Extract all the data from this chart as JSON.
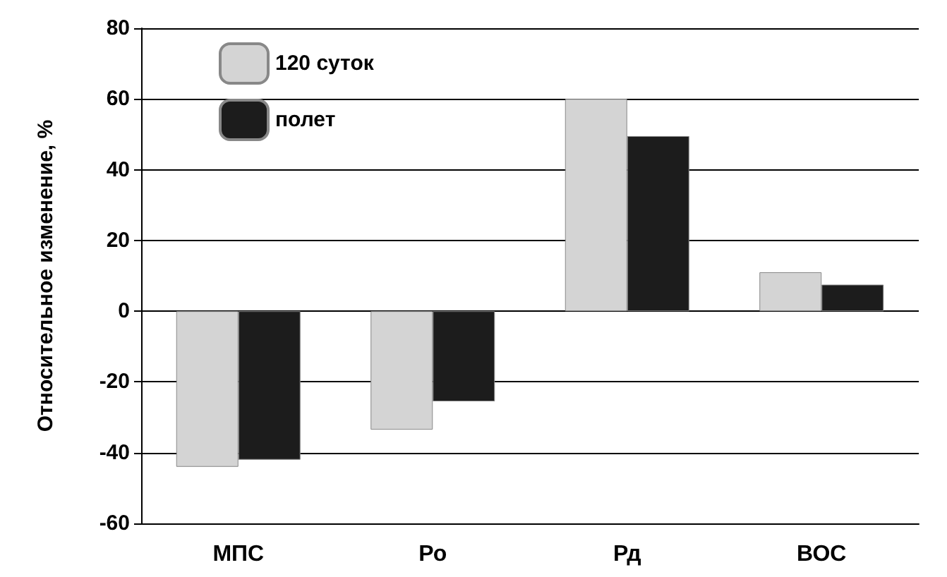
{
  "chart_data": {
    "type": "bar",
    "ylabel": "Относительное изменение, %",
    "categories": [
      "МПС",
      "Ро",
      "Рд",
      "ВОС"
    ],
    "series": [
      {
        "name": "120 суток",
        "color": "#d4d4d4",
        "values": [
          -44,
          -33.5,
          60,
          11
        ]
      },
      {
        "name": "полет",
        "color": "#1c1c1c",
        "values": [
          -42,
          -25.5,
          49.5,
          7.5
        ]
      }
    ],
    "ylim": [
      -60,
      80
    ],
    "yticks": [
      -60,
      -40,
      -20,
      0,
      20,
      40,
      60,
      80
    ],
    "grid": "y",
    "legend": "top left"
  }
}
